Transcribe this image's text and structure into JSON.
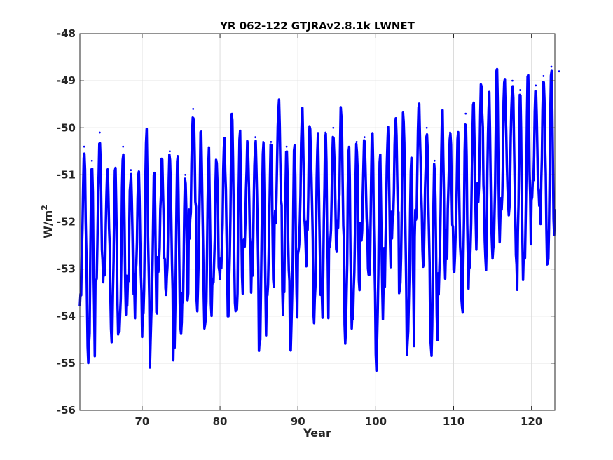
{
  "chart_data": {
    "type": "line",
    "title": "YR 062-122 GTJRAv2.8.1k LWNET",
    "xlabel": "Year",
    "ylabel_base": "W/m",
    "ylabel_exp": "2",
    "xlim": [
      62,
      123
    ],
    "ylim": [
      -56,
      -48
    ],
    "xticks": [
      70,
      80,
      90,
      100,
      110,
      120
    ],
    "yticks": [
      -56,
      -55,
      -54,
      -53,
      -52,
      -51,
      -50,
      -49,
      -48
    ],
    "xtick_labels": [
      "70",
      "80",
      "90",
      "100",
      "110",
      "120"
    ],
    "ytick_labels": [
      "-56",
      "-55",
      "-54",
      "-53",
      "-52",
      "-51",
      "-50",
      "-49",
      "-48"
    ],
    "grid": true,
    "series": [
      {
        "color": "#0000ff",
        "line_width": "thick",
        "annual_maxima": [
          -50.4,
          -50.7,
          -50.1,
          -50.9,
          -50.9,
          -50.4,
          -50.9,
          -51.0,
          -50.1,
          -51.0,
          -50.7,
          -50.5,
          -50.6,
          -51.0,
          -49.6,
          -50.1,
          -50.5,
          -50.7,
          -50.3,
          -49.7,
          -50.1,
          -50.3,
          -50.2,
          -50.3,
          -50.3,
          -49.5,
          -50.4,
          -50.4,
          -49.6,
          -50.0,
          -50.2,
          -50.1,
          -50.0,
          -49.6,
          -50.4,
          -50.3,
          -50.2,
          -50.2,
          -50.6,
          -50.1,
          -49.8,
          -49.7,
          -50.7,
          -49.6,
          -50.0,
          -50.7,
          -49.7,
          -50.1,
          -50.1,
          -49.7,
          -49.5,
          -49.1,
          -49.3,
          -48.8,
          -49.0,
          -49.0,
          -49.2,
          -48.9,
          -49.1,
          -48.9,
          -48.7,
          -48.8
        ]
      }
    ]
  }
}
